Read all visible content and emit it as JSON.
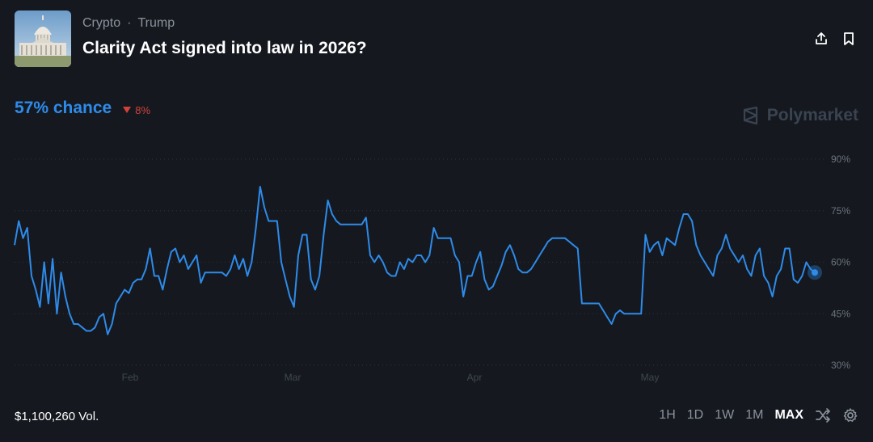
{
  "header": {
    "breadcrumbs": [
      "Crypto",
      "Trump"
    ],
    "separator": "·",
    "title": "Clarity Act signed into law in 2026?"
  },
  "market": {
    "chance_label": "57% chance",
    "delta_label": "8%",
    "delta_direction": "down",
    "brand": "Polymarket",
    "volume": "$1,100,260 Vol."
  },
  "time_ranges": [
    {
      "label": "1H",
      "active": false
    },
    {
      "label": "1D",
      "active": false
    },
    {
      "label": "1W",
      "active": false
    },
    {
      "label": "1M",
      "active": false
    },
    {
      "label": "MAX",
      "active": true
    }
  ],
  "icons": {
    "share": "share-icon",
    "bookmark": "bookmark-icon",
    "shuffle": "shuffle-icon",
    "settings": "gear-icon",
    "brand_logo": "polymarket-logo-icon"
  },
  "colors": {
    "line": "#2e8bea",
    "down": "#d3413a",
    "background": "#15191f"
  },
  "chart_data": {
    "type": "line",
    "x_ticks": [
      "Feb",
      "Mar",
      "Apr",
      "May"
    ],
    "y_ticks": [
      "90%",
      "75%",
      "60%",
      "45%",
      "30%"
    ],
    "ylim": [
      30,
      90
    ],
    "grid": true,
    "series": [
      {
        "values": [
          65,
          72,
          67,
          70,
          56,
          52,
          47,
          60,
          48,
          61,
          45,
          57,
          50,
          45,
          42,
          42,
          41,
          40,
          40,
          41,
          44,
          45,
          39,
          42,
          48,
          50,
          52,
          51,
          54,
          55,
          55,
          58,
          64,
          56,
          56,
          52,
          58,
          63,
          64,
          60,
          62,
          58,
          60,
          62,
          54,
          57,
          57,
          57,
          57,
          57,
          56,
          58,
          62,
          58,
          61,
          56,
          60,
          70,
          82,
          76,
          72,
          72,
          72,
          60,
          55,
          50,
          47,
          62,
          68,
          68,
          55,
          52,
          56,
          68,
          78,
          74,
          72,
          71,
          71,
          71,
          71,
          71,
          71,
          73,
          62,
          60,
          62,
          60,
          57,
          56,
          56,
          60,
          58,
          61,
          60,
          62,
          62,
          60,
          62,
          70,
          67,
          67,
          67,
          67,
          62,
          60,
          50,
          56,
          56,
          60,
          63,
          55,
          52,
          53,
          56,
          59,
          63,
          65,
          62,
          58,
          57,
          57,
          58,
          60,
          62,
          64,
          66,
          67,
          67,
          67,
          67,
          66,
          65,
          64,
          48,
          48,
          48,
          48,
          48,
          46,
          44,
          42,
          45,
          46,
          45,
          45,
          45,
          45,
          45,
          68,
          63,
          65,
          66,
          62,
          67,
          66,
          65,
          70,
          74,
          74,
          72,
          65,
          62,
          60,
          58,
          56,
          62,
          64,
          68,
          64,
          62,
          60,
          62,
          58,
          56,
          62,
          64,
          56,
          54,
          50,
          56,
          58,
          64,
          64,
          55,
          54,
          56,
          60,
          58,
          57
        ]
      }
    ]
  }
}
